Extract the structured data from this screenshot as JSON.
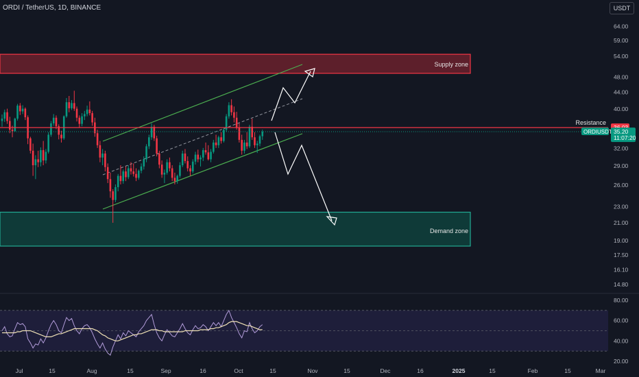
{
  "header": {
    "symbol_title": "ORDI / TetherUS, 1D, BINANCE",
    "currency_button": "USDT"
  },
  "colors": {
    "background": "#131722",
    "up_candle": "#089981",
    "down_candle": "#f23645",
    "supply_fill": "#5d1f2b",
    "demand_fill": "#0f3a38",
    "channel": "#4caf50",
    "rsi_line": "#b39ddb",
    "rsi_ma": "#f0e2b6",
    "resistance": "#f23645"
  },
  "chart_data": [
    {
      "type": "candlestick",
      "x_axis": {
        "ticks": [
          "Jul",
          "15",
          "Aug",
          "15",
          "Sep",
          "16",
          "Oct",
          "15",
          "Nov",
          "15",
          "Dec",
          "16",
          "2025",
          "15",
          "Feb",
          "15",
          "Mar"
        ]
      },
      "y_axis": {
        "scale": "log",
        "ticks": [
          "64.00",
          "59.00",
          "54.00",
          "48.00",
          "44.00",
          "40.00",
          "36.00",
          "32.00",
          "29.00",
          "26.00",
          "23.00",
          "21.00",
          "19.00",
          "17.50",
          "16.10",
          "14.80"
        ]
      },
      "candles": [
        [
          0,
          37.4,
          38.8,
          36.2,
          37.9
        ],
        [
          1,
          37.9,
          39.9,
          37.2,
          39.3
        ],
        [
          2,
          39.3,
          40.1,
          36.8,
          37.4
        ],
        [
          3,
          37.4,
          38.3,
          34.9,
          35.6
        ],
        [
          4,
          35.6,
          36.4,
          34.1,
          35.3
        ],
        [
          5,
          35.3,
          38.1,
          35.2,
          37.9
        ],
        [
          6,
          37.9,
          41.2,
          37.5,
          40.8
        ],
        [
          7,
          40.8,
          41.4,
          38.7,
          39.5
        ],
        [
          8,
          39.5,
          40.9,
          38.9,
          40.1
        ],
        [
          9,
          40.1,
          40.4,
          37.6,
          38.2
        ],
        [
          10,
          38.2,
          38.6,
          32.8,
          33.9
        ],
        [
          11,
          33.9,
          34.2,
          31.1,
          31.6
        ],
        [
          12,
          31.6,
          32.9,
          27.4,
          29.1
        ],
        [
          13,
          29.1,
          30.8,
          26.9,
          30.1
        ],
        [
          14,
          30.1,
          31.6,
          28.8,
          29.6
        ],
        [
          15,
          29.6,
          32.2,
          28.9,
          31.7
        ],
        [
          16,
          31.7,
          33.4,
          29.1,
          29.9
        ],
        [
          17,
          29.9,
          31.9,
          29.4,
          31.4
        ],
        [
          18,
          31.4,
          35.1,
          31.1,
          34.6
        ],
        [
          19,
          34.6,
          37.4,
          34.2,
          36.9
        ],
        [
          20,
          36.9,
          38.9,
          36.4,
          38.1
        ],
        [
          21,
          38.1,
          38.6,
          35.7,
          36.3
        ],
        [
          22,
          36.3,
          36.7,
          33.7,
          34.6
        ],
        [
          23,
          34.6,
          35.4,
          33.1,
          33.9
        ],
        [
          24,
          33.9,
          38.6,
          33.6,
          38.4
        ],
        [
          25,
          38.4,
          42.6,
          38.1,
          41.6
        ],
        [
          26,
          41.6,
          43.1,
          39.3,
          40.2
        ],
        [
          27,
          40.2,
          42.1,
          39.8,
          41.4
        ],
        [
          28,
          41.4,
          44.4,
          39.6,
          40.1
        ],
        [
          29,
          40.1,
          40.6,
          37.3,
          38.1
        ],
        [
          30,
          38.1,
          38.6,
          36.1,
          36.8
        ],
        [
          31,
          36.8,
          39.1,
          36.3,
          38.4
        ],
        [
          32,
          38.4,
          39.6,
          37.6,
          38.9
        ],
        [
          33,
          38.9,
          40.8,
          38.4,
          39.9
        ],
        [
          34,
          39.9,
          41.8,
          38.6,
          39.1
        ],
        [
          35,
          39.1,
          39.6,
          36.4,
          37.1
        ],
        [
          36,
          37.1,
          38.1,
          34.2,
          34.9
        ],
        [
          37,
          34.9,
          35.6,
          32.1,
          32.6
        ],
        [
          38,
          32.6,
          33.4,
          29.6,
          30.4
        ],
        [
          39,
          30.4,
          31.9,
          29.1,
          31.1
        ],
        [
          40,
          31.1,
          31.6,
          28.1,
          28.8
        ],
        [
          41,
          28.8,
          29.4,
          26.3,
          26.9
        ],
        [
          42,
          26.9,
          27.9,
          24.2,
          25.1
        ],
        [
          43,
          25.1,
          25.4,
          21.0,
          23.9
        ],
        [
          44,
          23.9,
          26.1,
          23.6,
          25.7
        ],
        [
          45,
          25.7,
          27.7,
          25.1,
          27.4
        ],
        [
          46,
          27.4,
          29.1,
          26.1,
          26.6
        ],
        [
          47,
          26.6,
          28.4,
          26.2,
          28.1
        ],
        [
          48,
          28.1,
          28.9,
          26.6,
          27.2
        ],
        [
          49,
          27.2,
          29.1,
          26.9,
          28.6
        ],
        [
          50,
          28.6,
          29.6,
          27.6,
          28.1
        ],
        [
          51,
          28.1,
          29.4,
          27.3,
          27.7
        ],
        [
          52,
          27.7,
          28.6,
          26.6,
          27.1
        ],
        [
          53,
          27.1,
          28.4,
          26.8,
          28.2
        ],
        [
          54,
          28.2,
          29.4,
          27.8,
          28.9
        ],
        [
          55,
          28.9,
          30.6,
          28.4,
          30.1
        ],
        [
          56,
          30.1,
          32.8,
          29.6,
          32.4
        ],
        [
          57,
          32.4,
          34.6,
          31.9,
          34.1
        ],
        [
          58,
          34.1,
          36.9,
          33.6,
          36.2
        ],
        [
          59,
          36.2,
          36.6,
          33.4,
          33.9
        ],
        [
          60,
          33.9,
          34.4,
          30.6,
          31.1
        ],
        [
          61,
          31.1,
          31.6,
          28.6,
          29.2
        ],
        [
          62,
          29.2,
          29.9,
          27.1,
          27.6
        ],
        [
          63,
          27.6,
          28.4,
          26.3,
          27.9
        ],
        [
          64,
          27.9,
          30.1,
          27.6,
          29.6
        ],
        [
          65,
          29.6,
          30.4,
          28.1,
          28.6
        ],
        [
          66,
          28.6,
          29.1,
          26.6,
          27.1
        ],
        [
          67,
          27.1,
          27.9,
          26.1,
          26.6
        ],
        [
          68,
          26.6,
          27.6,
          26.2,
          27.4
        ],
        [
          69,
          27.4,
          29.6,
          27.1,
          29.1
        ],
        [
          70,
          29.1,
          31.6,
          28.8,
          31.1
        ],
        [
          71,
          31.1,
          31.9,
          29.4,
          29.8
        ],
        [
          72,
          29.8,
          30.6,
          28.1,
          28.6
        ],
        [
          73,
          28.6,
          29.1,
          27.4,
          28.1
        ],
        [
          74,
          28.1,
          30.1,
          27.8,
          29.7
        ],
        [
          75,
          29.7,
          31.4,
          29.2,
          30.9
        ],
        [
          76,
          30.9,
          31.8,
          29.6,
          30.1
        ],
        [
          77,
          30.1,
          30.8,
          28.9,
          30.4
        ],
        [
          78,
          30.4,
          32.1,
          29.8,
          31.7
        ],
        [
          79,
          31.7,
          33.1,
          30.9,
          31.3
        ],
        [
          80,
          31.3,
          32.6,
          29.9,
          30.1
        ],
        [
          81,
          30.1,
          31.9,
          29.6,
          31.4
        ],
        [
          82,
          31.4,
          33.6,
          31.1,
          33.1
        ],
        [
          83,
          33.1,
          34.6,
          32.1,
          32.6
        ],
        [
          84,
          32.6,
          34.4,
          32.1,
          34.1
        ],
        [
          85,
          34.1,
          35.1,
          32.9,
          33.4
        ],
        [
          86,
          33.4,
          36.1,
          33.1,
          35.6
        ],
        [
          87,
          35.6,
          38.9,
          35.2,
          38.4
        ],
        [
          88,
          38.4,
          41.6,
          37.9,
          40.9
        ],
        [
          89,
          40.9,
          42.3,
          38.6,
          39.3
        ],
        [
          90,
          39.3,
          40.6,
          37.1,
          38.1
        ],
        [
          91,
          38.1,
          39.4,
          35.6,
          36.1
        ],
        [
          92,
          36.1,
          36.9,
          33.1,
          33.6
        ],
        [
          93,
          33.6,
          34.6,
          30.9,
          31.6
        ],
        [
          94,
          31.6,
          33.6,
          31.1,
          33.1
        ],
        [
          95,
          33.1,
          35.1,
          31.9,
          32.4
        ],
        [
          96,
          32.4,
          36.6,
          32.1,
          36.2
        ],
        [
          97,
          36.2,
          37.9,
          33.6,
          34.1
        ],
        [
          98,
          34.1,
          35.1,
          32.1,
          32.6
        ],
        [
          99,
          32.6,
          33.4,
          31.2,
          32.9
        ],
        [
          100,
          32.9,
          34.6,
          32.4,
          34.3
        ],
        [
          101,
          34.3,
          35.6,
          33.6,
          35.2
        ]
      ],
      "zones": [
        {
          "label": "Supply zone",
          "top": 54.6,
          "bottom": 49.0
        },
        {
          "label": "Demand zone",
          "top": 22.3,
          "bottom": 18.4
        }
      ],
      "resistance": {
        "label": "Resistance",
        "price": 36.03,
        "price_label": "36.03"
      },
      "last_price": {
        "symbol": "ORDIUSDT",
        "price": 35.2,
        "price_label": "35.20",
        "countdown": "11:07:20"
      }
    },
    {
      "type": "line",
      "indicator": "RSI",
      "y_axis": {
        "ticks": [
          "80.00",
          "60.00",
          "40.00",
          "20.00"
        ]
      },
      "band": {
        "upper": 70,
        "middle": 50,
        "lower": 30
      },
      "rsi": [
        50,
        54,
        47,
        44,
        45,
        52,
        58,
        56,
        57,
        54,
        42,
        38,
        33,
        37,
        36,
        42,
        38,
        43,
        50,
        56,
        60,
        56,
        50,
        48,
        56,
        63,
        60,
        62,
        55,
        50,
        47,
        52,
        55,
        56,
        53,
        48,
        42,
        37,
        33,
        38,
        32,
        28,
        26,
        34,
        40,
        46,
        42,
        48,
        45,
        50,
        48,
        46,
        44,
        49,
        52,
        55,
        60,
        63,
        66,
        56,
        48,
        43,
        40,
        46,
        51,
        48,
        45,
        44,
        48,
        52,
        57,
        52,
        48,
        46,
        51,
        55,
        52,
        53,
        56,
        54,
        50,
        54,
        58,
        55,
        58,
        54,
        60,
        66,
        70,
        63,
        58,
        53,
        47,
        43,
        50,
        49,
        58,
        52,
        48,
        50,
        54,
        56
      ],
      "rsi_ma": [
        48,
        48,
        48,
        48,
        48,
        48,
        49,
        49,
        50,
        50,
        50,
        50,
        49,
        48,
        47,
        46,
        45,
        44,
        44,
        44,
        45,
        46,
        47,
        47,
        48,
        49,
        50,
        51,
        52,
        52,
        52,
        52,
        52,
        52,
        52,
        52,
        51,
        50,
        48,
        46,
        45,
        43,
        42,
        41,
        40,
        40,
        41,
        42,
        43,
        44,
        45,
        46,
        46,
        47,
        47,
        48,
        49,
        50,
        51,
        51,
        51,
        50,
        50,
        49,
        49,
        49,
        49,
        49,
        49,
        49,
        49,
        50,
        50,
        50,
        50,
        50,
        50,
        51,
        51,
        51,
        51,
        52,
        52,
        53,
        53,
        54,
        55,
        56,
        58,
        59,
        59,
        59,
        58,
        57,
        56,
        55,
        55,
        54,
        53,
        52,
        51,
        51
      ]
    }
  ],
  "annotations": {
    "supply_label": "Supply zone",
    "demand_label": "Demand zone",
    "resistance_label": "Resistance",
    "resistance_price": "36.03",
    "symbol_tag": "ORDIUSDT",
    "last_price": "35.20",
    "countdown": "11:07:20"
  }
}
